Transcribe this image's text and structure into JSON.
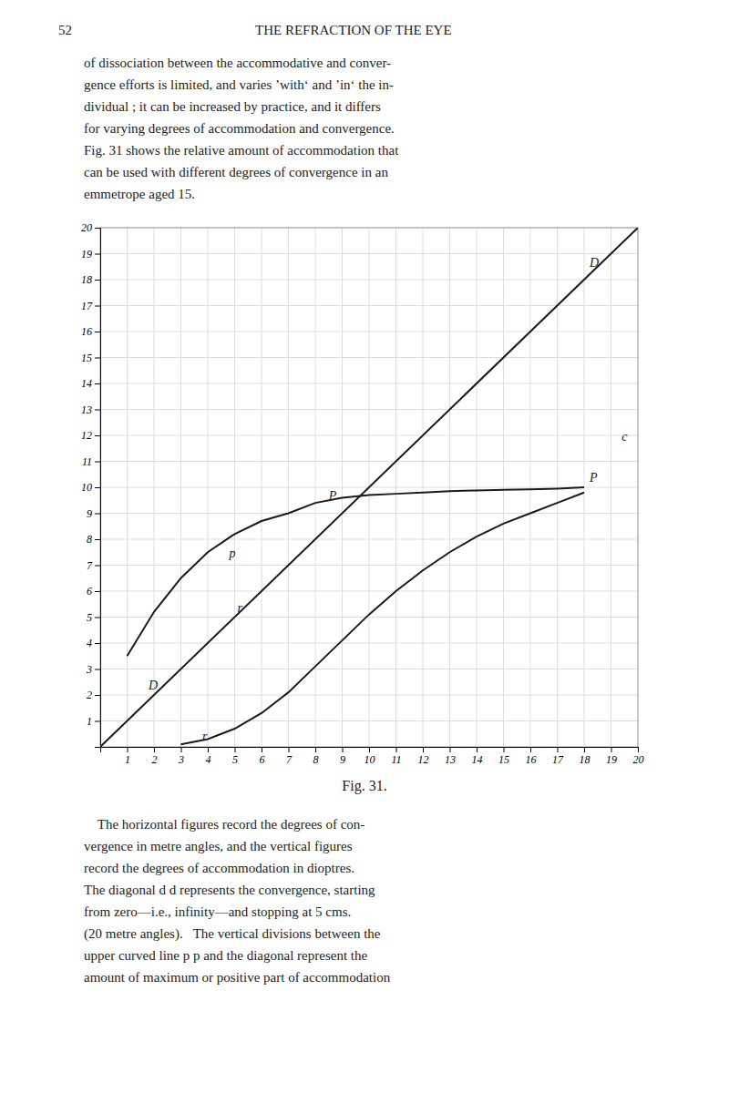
{
  "chart_data": {
    "type": "line",
    "title": "Fig. 31.",
    "xlim": [
      0,
      20
    ],
    "ylim": [
      0,
      20
    ],
    "xticks": [
      1,
      2,
      3,
      4,
      5,
      6,
      7,
      8,
      9,
      10,
      11,
      12,
      13,
      14,
      15,
      16,
      17,
      18,
      19,
      20
    ],
    "yticks": [
      1,
      2,
      3,
      4,
      5,
      6,
      7,
      8,
      9,
      10,
      11,
      12,
      13,
      14,
      15,
      16,
      17,
      18,
      19,
      20
    ],
    "grid": true,
    "series": [
      {
        "color": "#1a1a1a",
        "x": [
          0,
          20
        ],
        "values": [
          0,
          20
        ]
      },
      {
        "color": "#1a1a1a",
        "x": [
          1.0,
          2.0,
          3.0,
          4.0,
          5.0,
          6.0,
          7.0,
          8.0,
          9.0,
          10.0,
          11.0,
          12.0,
          13.0,
          14.0,
          15.0,
          16.0,
          17.0,
          18.0
        ],
        "values": [
          3.5,
          5.2,
          6.5,
          7.5,
          8.2,
          8.7,
          9.0,
          9.4,
          9.6,
          9.7,
          9.75,
          9.8,
          9.85,
          9.88,
          9.9,
          9.92,
          9.95,
          10.0
        ]
      },
      {
        "color": "#1a1a1a",
        "x": [
          3.0,
          4.0,
          5.0,
          6.0,
          7.0,
          8.0,
          9.0,
          10.0,
          11.0,
          12.0,
          13.0,
          14.0,
          15.0,
          16.0,
          17.0,
          18.0
        ],
        "values": [
          0.1,
          0.3,
          0.7,
          1.3,
          2.1,
          3.1,
          4.1,
          5.1,
          6.0,
          6.8,
          7.5,
          8.1,
          8.6,
          9.0,
          9.4,
          9.8
        ]
      }
    ],
    "annotations": [
      {
        "text": "D",
        "x": 18.2,
        "y": 18.5
      },
      {
        "text": "D",
        "x": 1.8,
        "y": 2.2
      },
      {
        "text": "p",
        "x": 4.8,
        "y": 7.3
      },
      {
        "text": "P",
        "x": 8.5,
        "y": 9.5
      },
      {
        "text": "P",
        "x": 18.2,
        "y": 10.2
      },
      {
        "text": "r",
        "x": 5.1,
        "y": 5.2
      },
      {
        "text": "r",
        "x": 3.8,
        "y": 0.25
      },
      {
        "text": "c",
        "x": 19.4,
        "y": 11.8
      }
    ]
  },
  "page": {
    "header": [
      "52",
      "THE REFRACTION OF THE EYE"
    ],
    "paragraphs": [
      [
        "of dissociation between the accommodative and conver-",
        "gence efforts is limited, and varies ’with‘ and ’in‘ the in-",
        "dividual ; it can be increased by practice, and it differs",
        "for varying degrees of accommodation and convergence.",
        "Fig. 31 shows the relative amount of accommodation that",
        "can be used with different degrees of convergence in an",
        "emmetrope aged 15."
      ],
      [
        "    The horizontal figures record the degrees of con-",
        "vergence in metre angles, and the vertical figures",
        "record the degrees of accommodation in dioptres.",
        "The diagonal d d represents the convergence, starting",
        "from zero—i.e., infinity—and stopping at 5 cms.",
        "(20 metre angles).   The vertical divisions between the",
        "upper curved line p p and the diagonal represent the",
        "amount of maximum or positive part of accommodation"
      ]
    ]
  }
}
